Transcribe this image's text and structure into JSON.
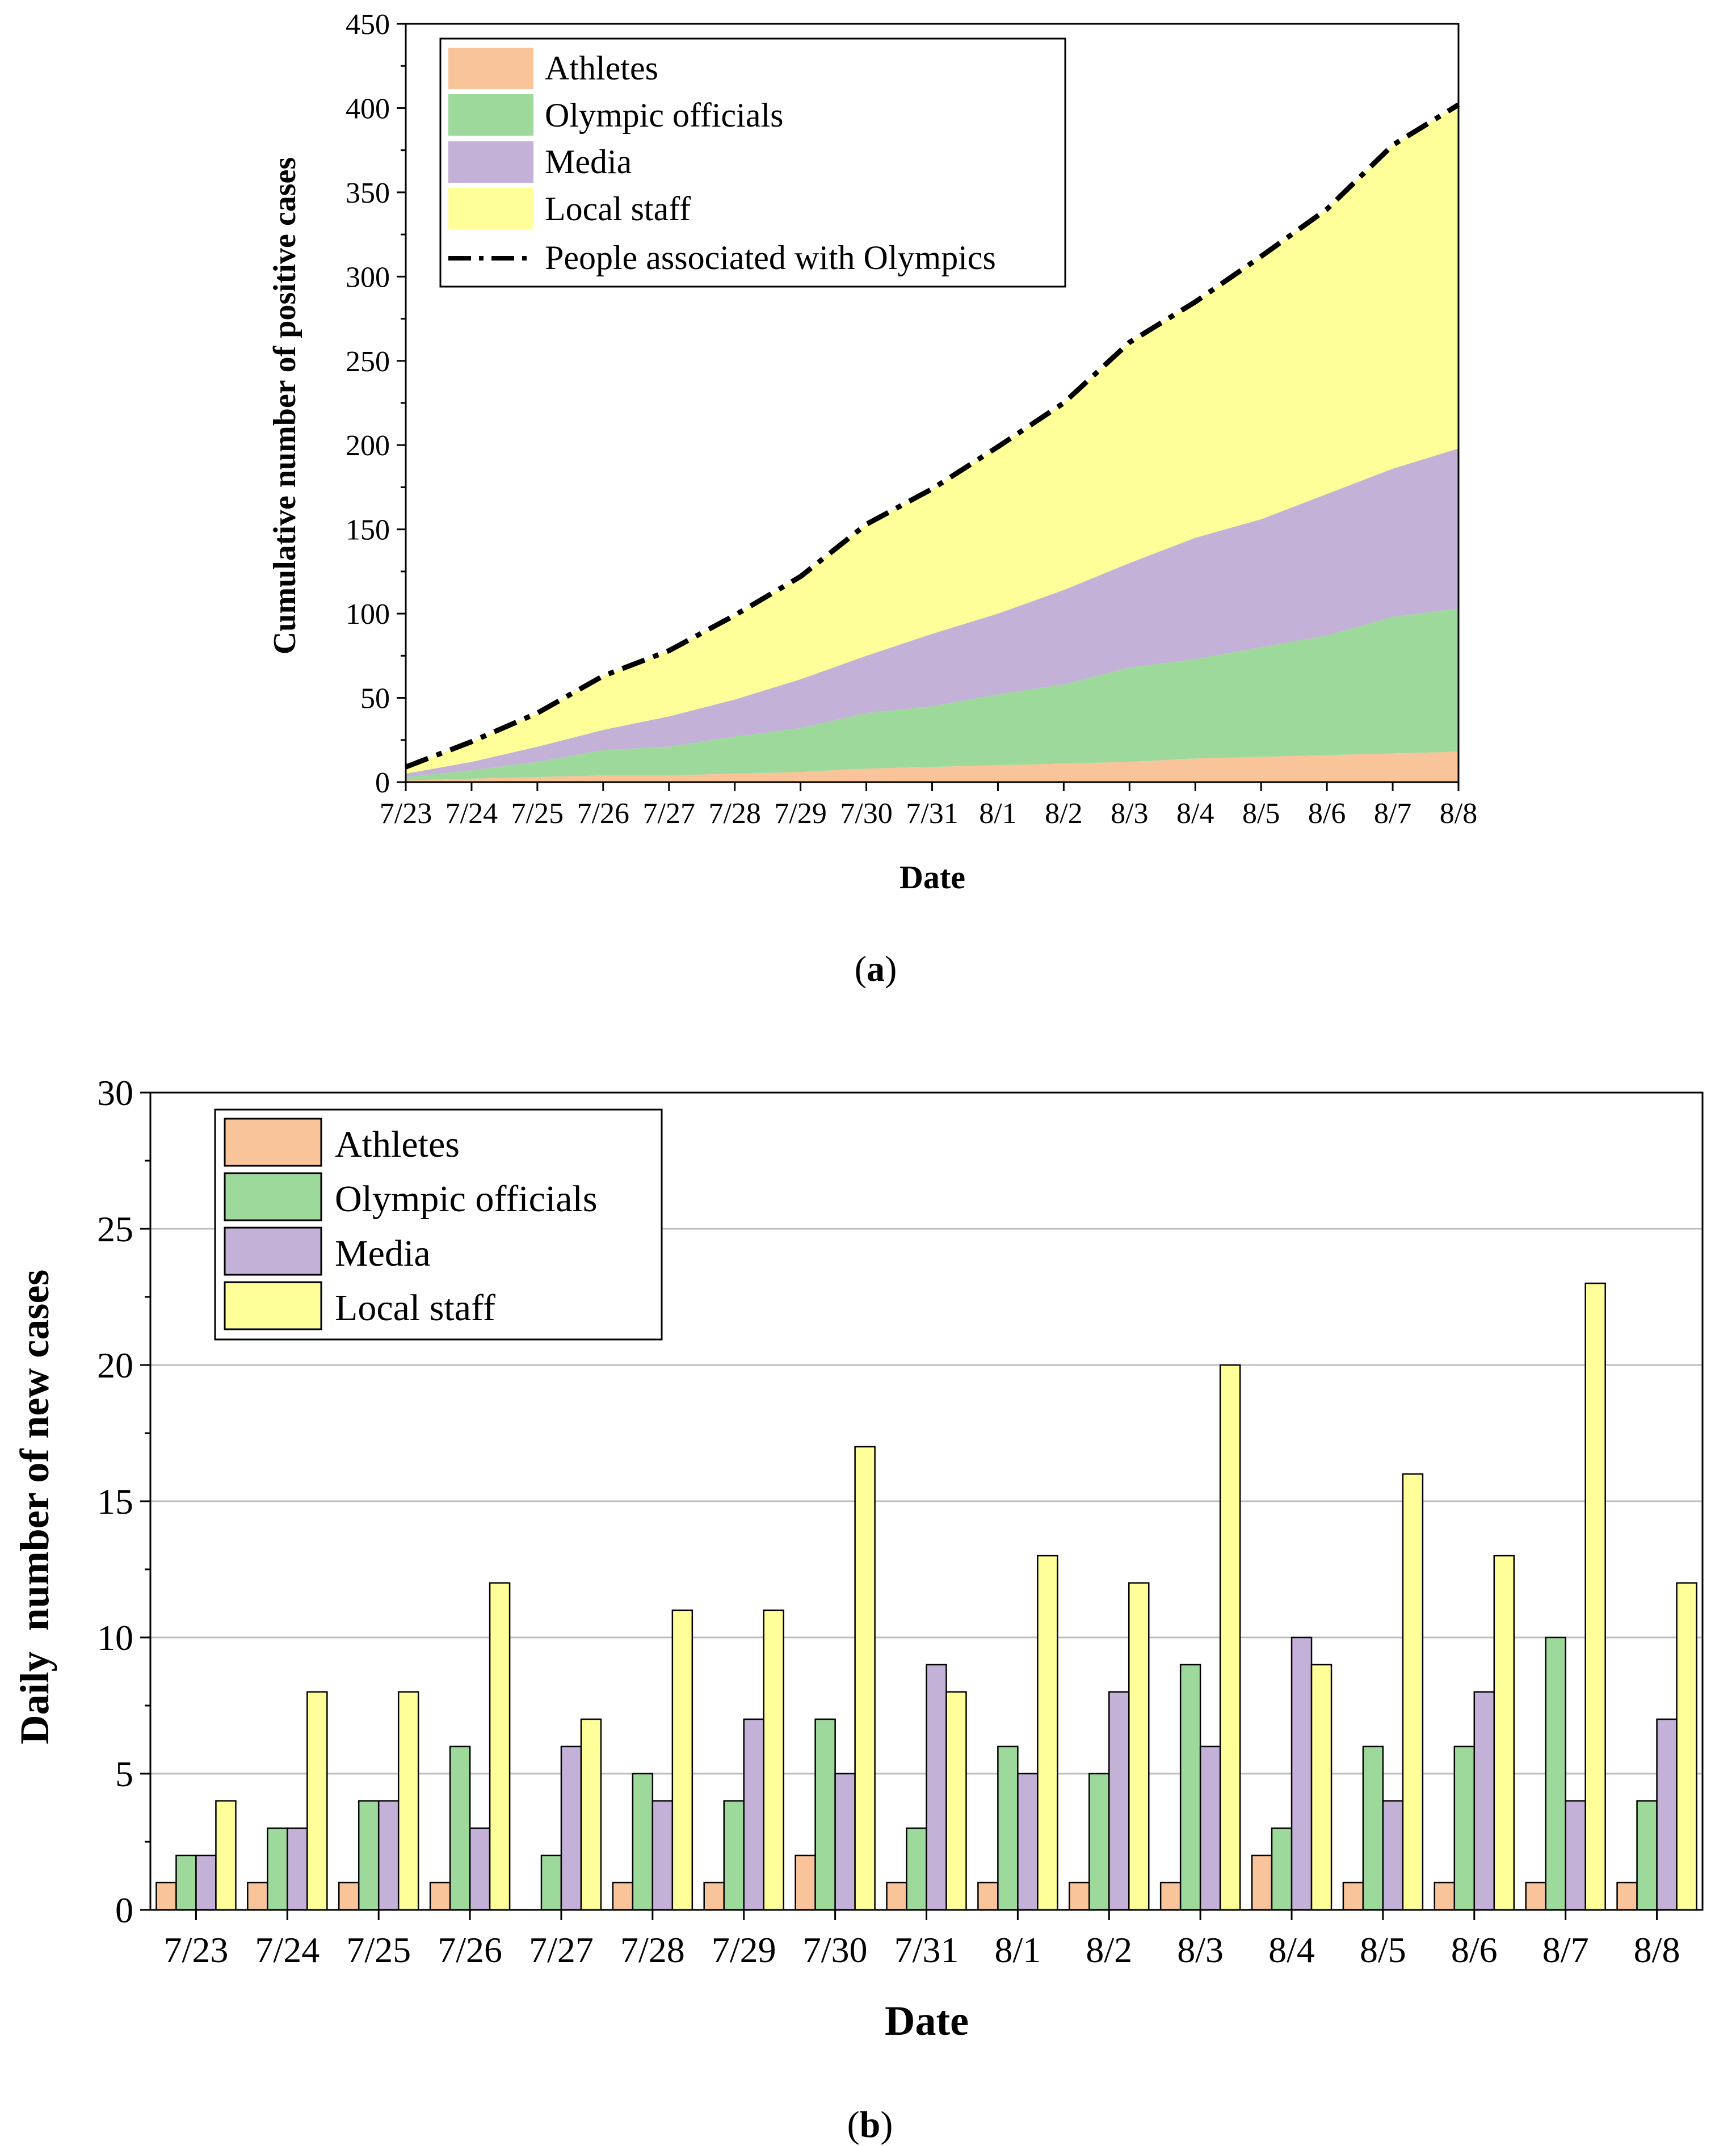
{
  "colors": {
    "athletes": "#F9C49A",
    "officials": "#9ED99C",
    "media": "#C3B1D8",
    "staff": "#FFFF99",
    "grid": "#BFBFBF",
    "axis": "#000000"
  },
  "chart_data": [
    {
      "type": "area",
      "panel_label": "(a)",
      "panel_letter": "a",
      "xlabel": "Date",
      "ylabel": "Cumulative number of positive cases",
      "ylim": [
        0,
        450
      ],
      "yticks": [
        0,
        50,
        100,
        150,
        200,
        250,
        300,
        350,
        400,
        450
      ],
      "stacked": true,
      "grid": false,
      "legend_position": "top-left",
      "categories": [
        "7/23",
        "7/24",
        "7/25",
        "7/26",
        "7/27",
        "7/28",
        "7/29",
        "7/30",
        "7/31",
        "8/1",
        "8/2",
        "8/3",
        "8/4",
        "8/5",
        "8/6",
        "8/7",
        "8/8"
      ],
      "series": [
        {
          "name": "Athletes",
          "color": "#F9C49A",
          "values": [
            1,
            2,
            3,
            4,
            4,
            5,
            6,
            8,
            9,
            10,
            11,
            12,
            14,
            15,
            16,
            17,
            18
          ]
        },
        {
          "name": "Olympic officials",
          "color": "#9ED99C",
          "values": [
            2,
            5,
            9,
            15,
            17,
            22,
            26,
            33,
            36,
            42,
            47,
            56,
            59,
            65,
            71,
            81,
            85
          ]
        },
        {
          "name": "Media",
          "color": "#C3B1D8",
          "values": [
            2,
            5,
            9,
            12,
            18,
            22,
            29,
            34,
            43,
            48,
            56,
            62,
            72,
            76,
            84,
            88,
            95
          ]
        },
        {
          "name": "Local staff",
          "color": "#FFFF99",
          "values": [
            4,
            12,
            20,
            32,
            39,
            50,
            61,
            78,
            86,
            99,
            111,
            131,
            140,
            156,
            169,
            192,
            204
          ]
        }
      ],
      "line": {
        "name": "People associated with Olympics",
        "color": "#000000",
        "style": "dash-dot",
        "values": [
          9,
          24,
          41,
          63,
          78,
          99,
          122,
          153,
          174,
          199,
          225,
          261,
          285,
          312,
          340,
          378,
          402
        ]
      }
    },
    {
      "type": "bar",
      "panel_label": "(b)",
      "panel_letter": "b",
      "xlabel": "Date",
      "ylabel": "Daily  number of new cases",
      "ylim": [
        0,
        30
      ],
      "yticks": [
        0,
        5,
        10,
        15,
        20,
        25,
        30
      ],
      "grid": true,
      "legend_position": "top-left",
      "categories": [
        "7/23",
        "7/24",
        "7/25",
        "7/26",
        "7/27",
        "7/28",
        "7/29",
        "7/30",
        "7/31",
        "8/1",
        "8/2",
        "8/3",
        "8/4",
        "8/5",
        "8/6",
        "8/7",
        "8/8"
      ],
      "series": [
        {
          "name": "Athletes",
          "color": "#F9C49A",
          "values": [
            1,
            1,
            1,
            1,
            0,
            1,
            1,
            2,
            1,
            1,
            1,
            1,
            2,
            1,
            1,
            1,
            1
          ]
        },
        {
          "name": "Olympic officials",
          "color": "#9ED99C",
          "values": [
            2,
            3,
            4,
            6,
            2,
            5,
            4,
            7,
            3,
            6,
            5,
            9,
            3,
            6,
            6,
            10,
            4
          ]
        },
        {
          "name": "Media",
          "color": "#C3B1D8",
          "values": [
            2,
            3,
            4,
            3,
            6,
            4,
            7,
            5,
            9,
            5,
            8,
            6,
            10,
            4,
            8,
            4,
            7
          ]
        },
        {
          "name": "Local staff",
          "color": "#FFFF99",
          "values": [
            4,
            8,
            8,
            12,
            7,
            11,
            11,
            17,
            8,
            13,
            12,
            20,
            9,
            16,
            13,
            23,
            12
          ]
        }
      ]
    }
  ]
}
